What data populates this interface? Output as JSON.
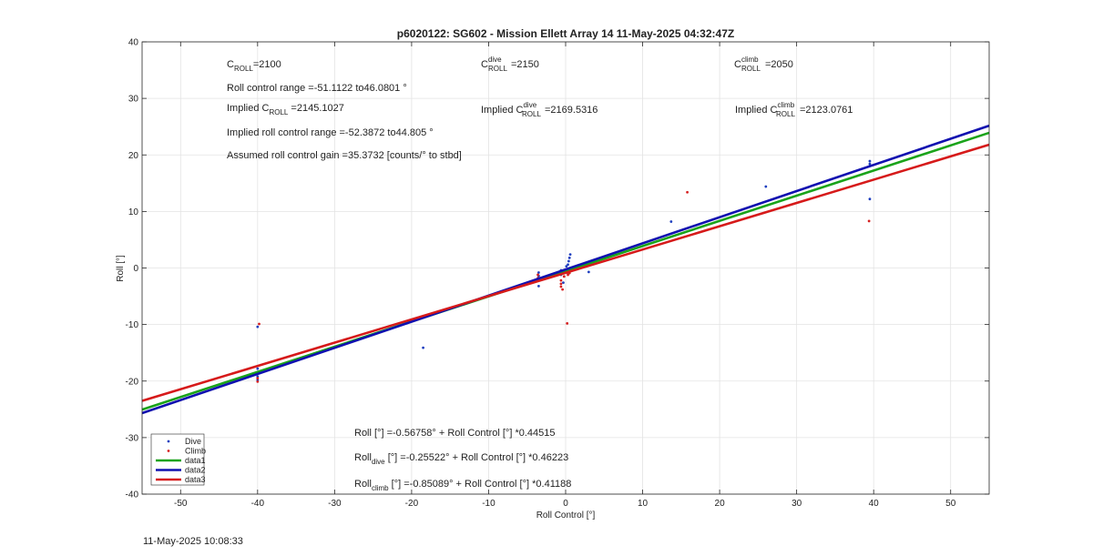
{
  "chart_data": {
    "type": "scatter",
    "title": "p6020122: SG602 - Mission Ellett Array 14 11-May-2025 04:32:47Z",
    "xlabel": "Roll Control [°]",
    "ylabel": "Roll [°]",
    "xlim": [
      -55,
      55
    ],
    "ylim": [
      -40,
      40
    ],
    "xticks": [
      -50,
      -40,
      -30,
      -20,
      -10,
      0,
      10,
      20,
      30,
      40,
      50
    ],
    "yticks": [
      -40,
      -30,
      -20,
      -10,
      0,
      10,
      20,
      30,
      40
    ],
    "grid": true,
    "legend_position": "bottom-left",
    "series": [
      {
        "name": "Dive",
        "kind": "points",
        "color": "#1f3fbf",
        "points": [
          [
            -40,
            -10.4
          ],
          [
            -40,
            -17.8
          ],
          [
            -40,
            -18.6
          ],
          [
            -40,
            -19.2
          ],
          [
            -40,
            -19.8
          ],
          [
            -18.5,
            -14.1
          ],
          [
            -3.5,
            -0.8
          ],
          [
            -3.5,
            -1.4
          ],
          [
            -3.5,
            -2.0
          ],
          [
            -3.5,
            -3.2
          ],
          [
            -0.6,
            -0.4
          ],
          [
            -0.6,
            -1.2
          ],
          [
            -0.3,
            -2.6
          ],
          [
            0.1,
            0.3
          ],
          [
            0.2,
            -0.8
          ],
          [
            0.3,
            0.6
          ],
          [
            0.4,
            1.2
          ],
          [
            0.5,
            1.8
          ],
          [
            0.6,
            2.4
          ],
          [
            0.5,
            -0.3
          ],
          [
            3,
            -0.7
          ],
          [
            13.7,
            8.2
          ],
          [
            26,
            14.4
          ],
          [
            39.5,
            18.4
          ],
          [
            39.5,
            18.9
          ],
          [
            39.5,
            12.2
          ]
        ]
      },
      {
        "name": "Climb",
        "kind": "points",
        "color": "#d62020",
        "points": [
          [
            -39.8,
            -9.9
          ],
          [
            -40,
            -19.5
          ],
          [
            -40,
            -20.1
          ],
          [
            -3.6,
            -1.2
          ],
          [
            -3.6,
            -1.8
          ],
          [
            -0.6,
            -2.2
          ],
          [
            -0.6,
            -2.8
          ],
          [
            -0.6,
            -3.3
          ],
          [
            -0.4,
            -3.8
          ],
          [
            -0.2,
            -1.5
          ],
          [
            0.1,
            -0.6
          ],
          [
            0.3,
            -1.2
          ],
          [
            0.5,
            -0.9
          ],
          [
            0.7,
            -0.3
          ],
          [
            0.2,
            -9.8
          ],
          [
            15.8,
            13.4
          ],
          [
            39.4,
            8.3
          ]
        ]
      },
      {
        "name": "data1",
        "kind": "line",
        "color": "#1aa31a",
        "intercept": -0.56758,
        "slope": 0.44515
      },
      {
        "name": "data2",
        "kind": "line",
        "color": "#1010b0",
        "intercept": -0.25522,
        "slope": 0.46223
      },
      {
        "name": "data3",
        "kind": "line",
        "color": "#d61a1a",
        "intercept": -0.85089,
        "slope": 0.41188
      }
    ]
  },
  "annotations": {
    "c_roll_prefix": "C",
    "c_roll_sub": "ROLL",
    "c_roll_value": "=2100",
    "c_dive_prefix": "C",
    "c_dive_sup": "dive",
    "c_dive_sub": "ROLL",
    "c_dive_value": "=2150",
    "c_climb_prefix": "C",
    "c_climb_sup": "climb",
    "c_climb_sub": "ROLL",
    "c_climb_value": "=2050",
    "roll_range": "Roll control range =-51.1122 to46.0801 °",
    "implied_c_prefix": "Implied C",
    "implied_c_sub": "ROLL",
    "implied_c_value": " =2145.1027",
    "implied_dive_prefix": "Implied C",
    "implied_dive_sup": "dive",
    "implied_dive_sub": "ROLL",
    "implied_dive_value": "=2169.5316",
    "implied_climb_prefix": "Implied C",
    "implied_climb_sup": "climb",
    "implied_climb_sub": "ROLL",
    "implied_climb_value": "=2123.0761",
    "implied_range": "Implied roll control range =-52.3872 to44.805 °",
    "gain": "Assumed roll control gain =35.3732 [counts/° to stbd]",
    "fit_all": "Roll [°] =-0.56758° + Roll Control [°] *0.44515",
    "fit_dive_prefix": "Roll",
    "fit_dive_sub": "dive",
    "fit_dive_rest": " [°] =-0.25522° + Roll Control [°] *0.46223",
    "fit_climb_prefix": "Roll",
    "fit_climb_sub": "climb",
    "fit_climb_rest": " [°] =-0.85089° + Roll Control [°] *0.41188"
  },
  "footer": {
    "timestamp": "11-May-2025 10:08:33"
  }
}
